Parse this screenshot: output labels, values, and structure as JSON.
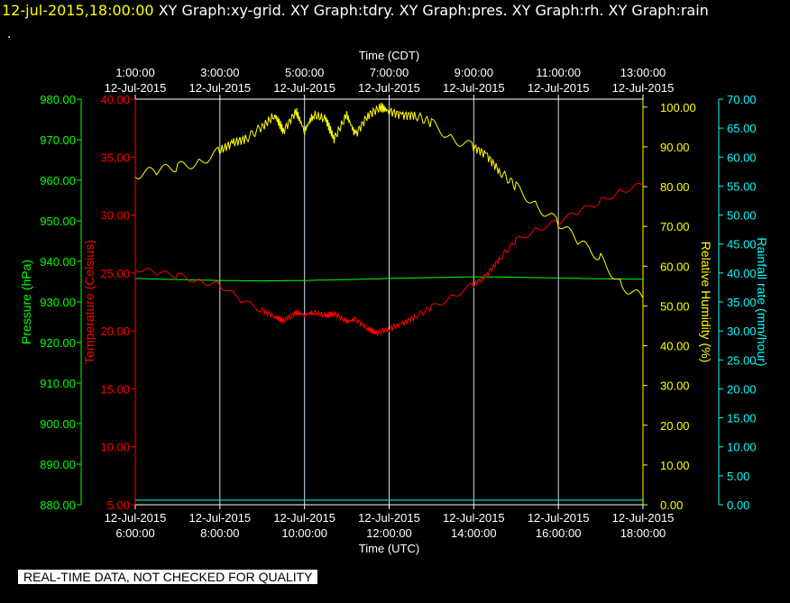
{
  "header": {
    "timestamp": "12-jul-2015,18:00:00",
    "graphs": [
      "XY Graph:xy-grid.",
      "XY Graph:tdry.",
      "XY Graph:pres.",
      "XY Graph:rh.",
      "XY Graph:rain"
    ],
    "dot": "."
  },
  "footer": {
    "quality_note": "REAL-TIME DATA, NOT CHECKED FOR QUALITY"
  },
  "colors": {
    "pressure": "#00ff00",
    "temperature": "#ff0000",
    "humidity": "#ffff00",
    "rain": "#00ffff",
    "grid": "#ccddee"
  },
  "chart_data": {
    "type": "line",
    "x_top_title": "Time (CDT)",
    "x_bottom_title": "Time (UTC)",
    "x_hours_utc_range": [
      6,
      18
    ],
    "x_ticks_bottom": [
      {
        "date": "12-Jul-2015",
        "time": "6:00:00"
      },
      {
        "date": "12-Jul-2015",
        "time": "8:00:00"
      },
      {
        "date": "12-Jul-2015",
        "time": "10:00:00"
      },
      {
        "date": "12-Jul-2015",
        "time": "12:00:00"
      },
      {
        "date": "12-Jul-2015",
        "time": "14:00:00"
      },
      {
        "date": "12-Jul-2015",
        "time": "16:00:00"
      },
      {
        "date": "12-Jul-2015",
        "time": "18:00:00"
      }
    ],
    "x_ticks_top": [
      {
        "time": "1:00:00",
        "date": "12-Jul-2015"
      },
      {
        "time": "3:00:00",
        "date": "12-Jul-2015"
      },
      {
        "time": "5:00:00",
        "date": "12-Jul-2015"
      },
      {
        "time": "7:00:00",
        "date": "12-Jul-2015"
      },
      {
        "time": "9:00:00",
        "date": "12-Jul-2015"
      },
      {
        "time": "11:00:00",
        "date": "12-Jul-2015"
      },
      {
        "time": "13:00:00",
        "date": "12-Jul-2015"
      }
    ],
    "axes": {
      "pressure": {
        "label": "Pressure (hPa)",
        "range": [
          880,
          980
        ],
        "ticks": [
          "880.00",
          "890.00",
          "900.00",
          "910.00",
          "920.00",
          "930.00",
          "940.00",
          "950.00",
          "960.00",
          "970.00",
          "980.00"
        ]
      },
      "temperature": {
        "label": "Temperature (Celsius)",
        "range": [
          5,
          40
        ],
        "ticks": [
          "5.00",
          "10.00",
          "15.00",
          "20.00",
          "25.00",
          "30.00",
          "35.00",
          "40.00"
        ]
      },
      "humidity": {
        "label": "Relative Humidity (%)",
        "range": [
          0,
          102
        ],
        "ticks": [
          "0.00",
          "10.00",
          "20.00",
          "30.00",
          "40.00",
          "50.00",
          "60.00",
          "70.00",
          "80.00",
          "90.00",
          "100.00"
        ]
      },
      "rain": {
        "label": "Rainfall rate (mm/hour)",
        "range": [
          0,
          70
        ],
        "ticks": [
          "0.00",
          "5.00",
          "10.00",
          "15.00",
          "20.00",
          "25.00",
          "30.00",
          "35.00",
          "40.00",
          "45.00",
          "50.00",
          "55.00",
          "60.00",
          "65.00",
          "70.00"
        ]
      }
    },
    "series": [
      {
        "axis": "pressure",
        "x": [
          6,
          7,
          8,
          9,
          10,
          11,
          12,
          13,
          14,
          15,
          16,
          17,
          18
        ],
        "y": [
          935.8,
          935.5,
          935.3,
          935.2,
          935.3,
          935.5,
          935.8,
          936.0,
          936.2,
          936.1,
          935.9,
          935.7,
          935.6
        ]
      },
      {
        "axis": "temperature",
        "x": [
          6,
          6.5,
          7,
          7.5,
          8,
          8.5,
          9,
          9.3,
          9.5,
          9.8,
          10,
          10.2,
          10.5,
          10.7,
          11,
          11.2,
          11.5,
          11.7,
          12,
          12.3,
          12.6,
          13,
          13.5,
          14,
          14.3,
          14.6,
          15,
          15.5,
          16,
          16.5,
          17,
          17.5,
          18
        ],
        "y": [
          25.4,
          25.0,
          24.8,
          24.3,
          24.0,
          22.6,
          21.8,
          21.2,
          20.9,
          21.6,
          21.4,
          21.6,
          21.3,
          21.5,
          20.8,
          21.0,
          20.2,
          19.8,
          20.2,
          20.6,
          21.2,
          22.0,
          23.0,
          24.0,
          24.8,
          26.2,
          27.8,
          28.8,
          29.4,
          30.3,
          31.2,
          32.1,
          32.6
        ]
      },
      {
        "axis": "humidity",
        "x": [
          6,
          6.5,
          7,
          7.5,
          8,
          8.3,
          8.6,
          9,
          9.3,
          9.5,
          9.8,
          10,
          10.2,
          10.5,
          10.7,
          11,
          11.2,
          11.5,
          11.8,
          12,
          12.3,
          12.6,
          13,
          13.5,
          14,
          14.3,
          14.6,
          15,
          15.5,
          16,
          16.5,
          17,
          17.5,
          18
        ],
        "y": [
          83,
          84,
          85,
          86,
          89,
          91,
          92,
          95,
          98,
          94,
          99,
          94,
          98,
          97,
          92,
          98,
          93,
          98,
          100,
          99,
          98,
          98,
          96,
          92,
          90,
          88,
          84,
          80,
          75,
          71,
          66,
          62,
          55,
          52
        ]
      },
      {
        "axis": "rain",
        "x": [
          6,
          18
        ],
        "y": [
          0.8,
          0.8
        ]
      }
    ]
  }
}
